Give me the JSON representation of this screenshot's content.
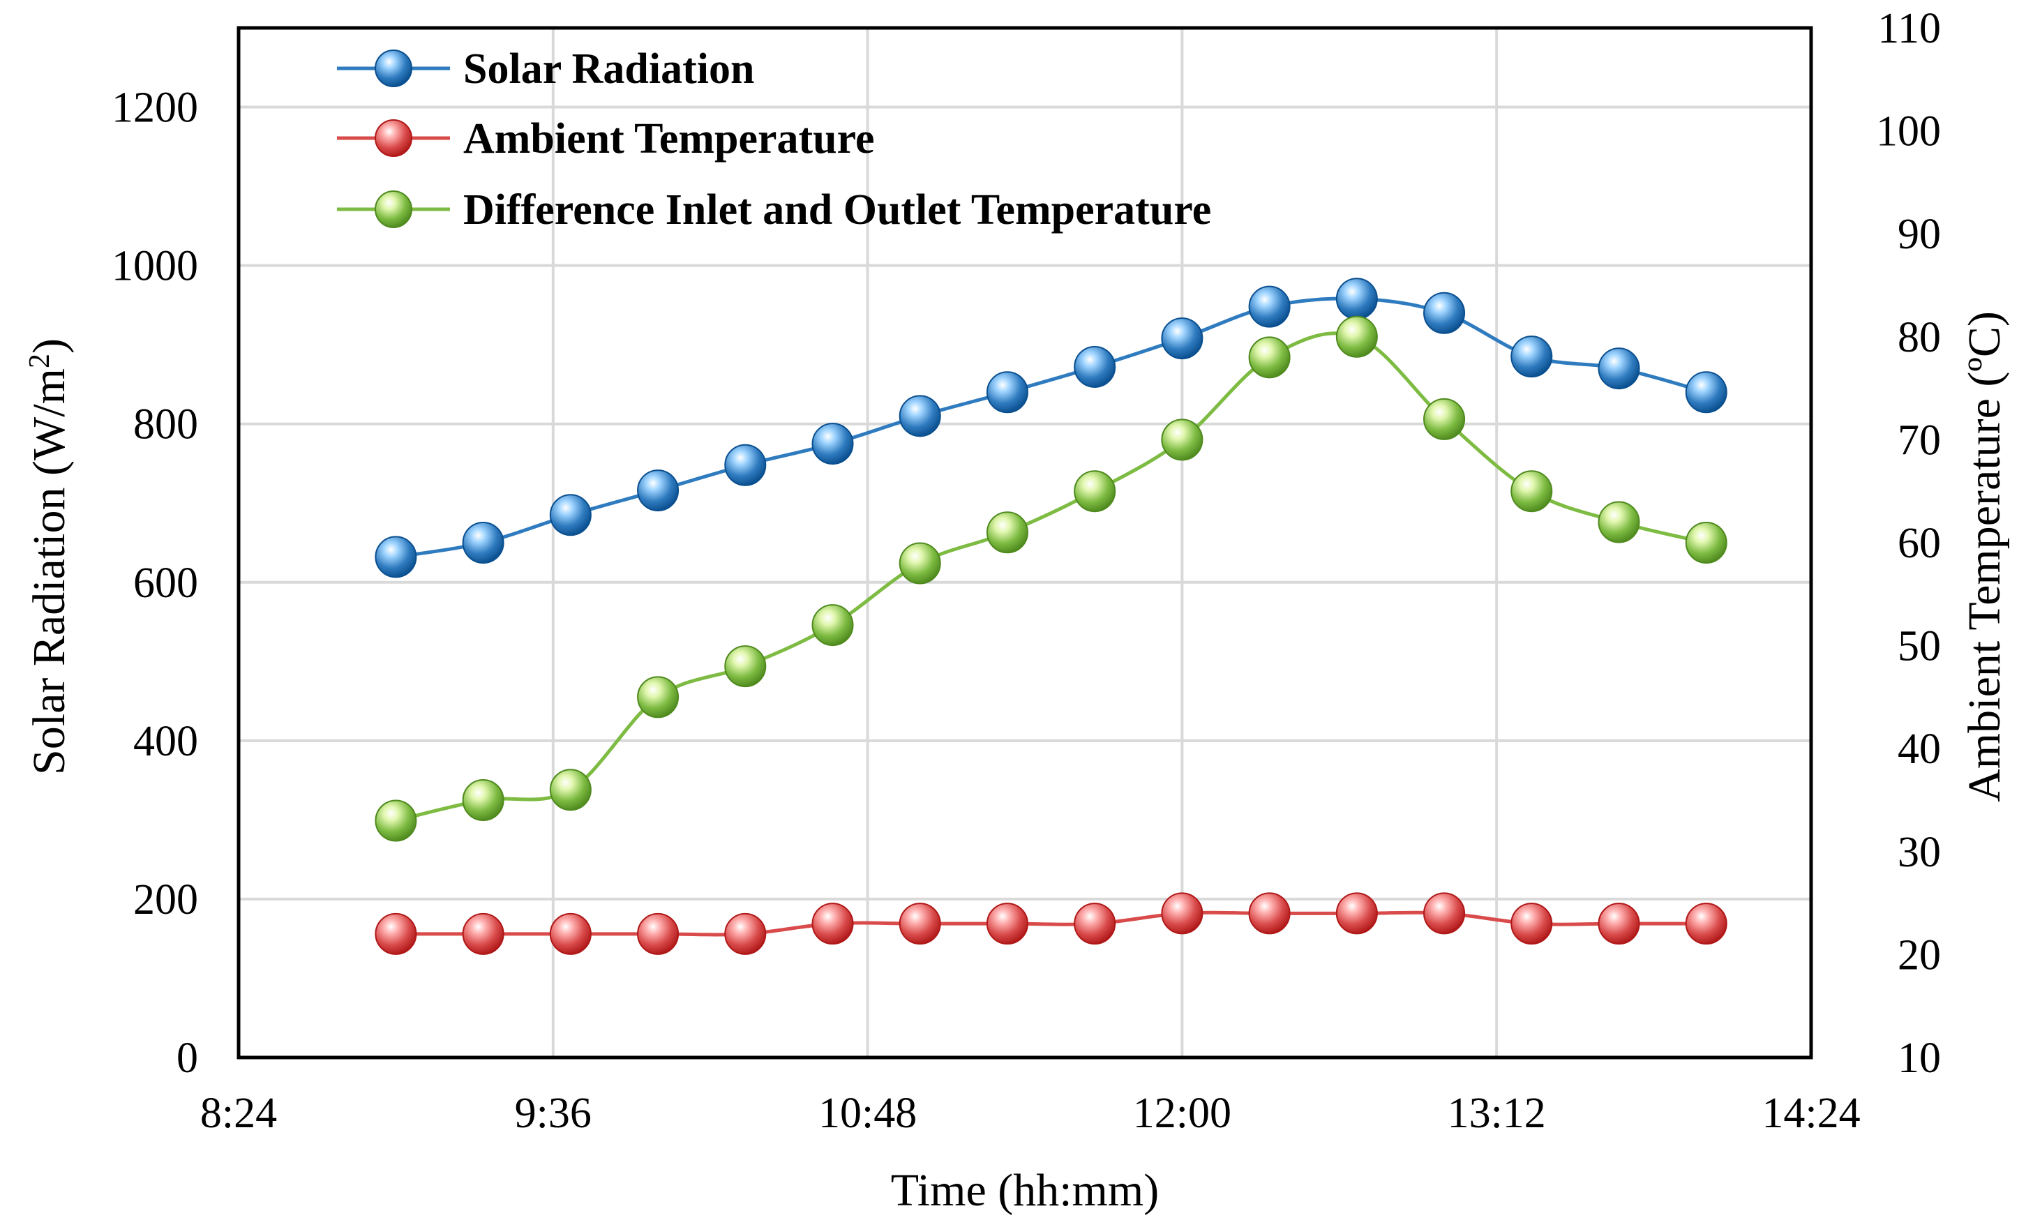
{
  "chart_data": {
    "type": "line",
    "title": "",
    "xlabel": "Time (hh:mm)",
    "ylabel_left": "Solar Radiation (W/m",
    "ylabel_left_sup": "2",
    "ylabel_left_end": ")",
    "ylabel_right": "Ambient Temperature (ºC)",
    "x_range_minutes": [
      504,
      864
    ],
    "x_ticks": [
      {
        "minutes": 504,
        "label": "8:24"
      },
      {
        "minutes": 576,
        "label": "9:36"
      },
      {
        "minutes": 648,
        "label": "10:48"
      },
      {
        "minutes": 720,
        "label": "12:00"
      },
      {
        "minutes": 792,
        "label": "13:12"
      },
      {
        "minutes": 864,
        "label": "14:24"
      }
    ],
    "y_left_range": [
      0,
      1300
    ],
    "y_left_ticks": [
      "0",
      "200",
      "400",
      "600",
      "800",
      "1000",
      "1200"
    ],
    "y_right_range": [
      10,
      110
    ],
    "y_right_ticks": [
      "10",
      "20",
      "30",
      "40",
      "50",
      "60",
      "70",
      "80",
      "90",
      "100",
      "110"
    ],
    "grid": true,
    "legend_position": "top-left",
    "x_times_minutes": [
      540,
      560,
      580,
      600,
      620,
      640,
      660,
      680,
      700,
      720,
      740,
      760,
      780,
      800,
      820,
      840
    ],
    "series": [
      {
        "name": "Solar Radiation",
        "axis": "left",
        "color": "#2F7BBF",
        "ball_light": "#9FD4FF",
        "ball_dark": "#0A4F8F",
        "values": [
          632,
          650,
          685,
          716,
          748,
          775,
          810,
          840,
          872,
          908,
          948,
          958,
          940,
          885,
          870,
          840
        ]
      },
      {
        "name": "Ambient Temperature",
        "axis": "right",
        "color": "#D94B4B",
        "ball_light": "#FFB0B0",
        "ball_dark": "#B01818",
        "values": [
          22,
          22,
          22,
          22,
          22,
          23,
          23,
          23,
          23,
          24,
          24,
          24,
          24,
          23,
          23,
          23
        ]
      },
      {
        "name": "Difference Inlet and Outlet Temperature",
        "axis": "right",
        "color": "#7DBB42",
        "ball_light": "#E2F7B0",
        "ball_dark": "#4F8A1E",
        "values": [
          33,
          35,
          36,
          45,
          48,
          52,
          58,
          61,
          65,
          70,
          78,
          80,
          72,
          65,
          62,
          60
        ]
      }
    ]
  }
}
